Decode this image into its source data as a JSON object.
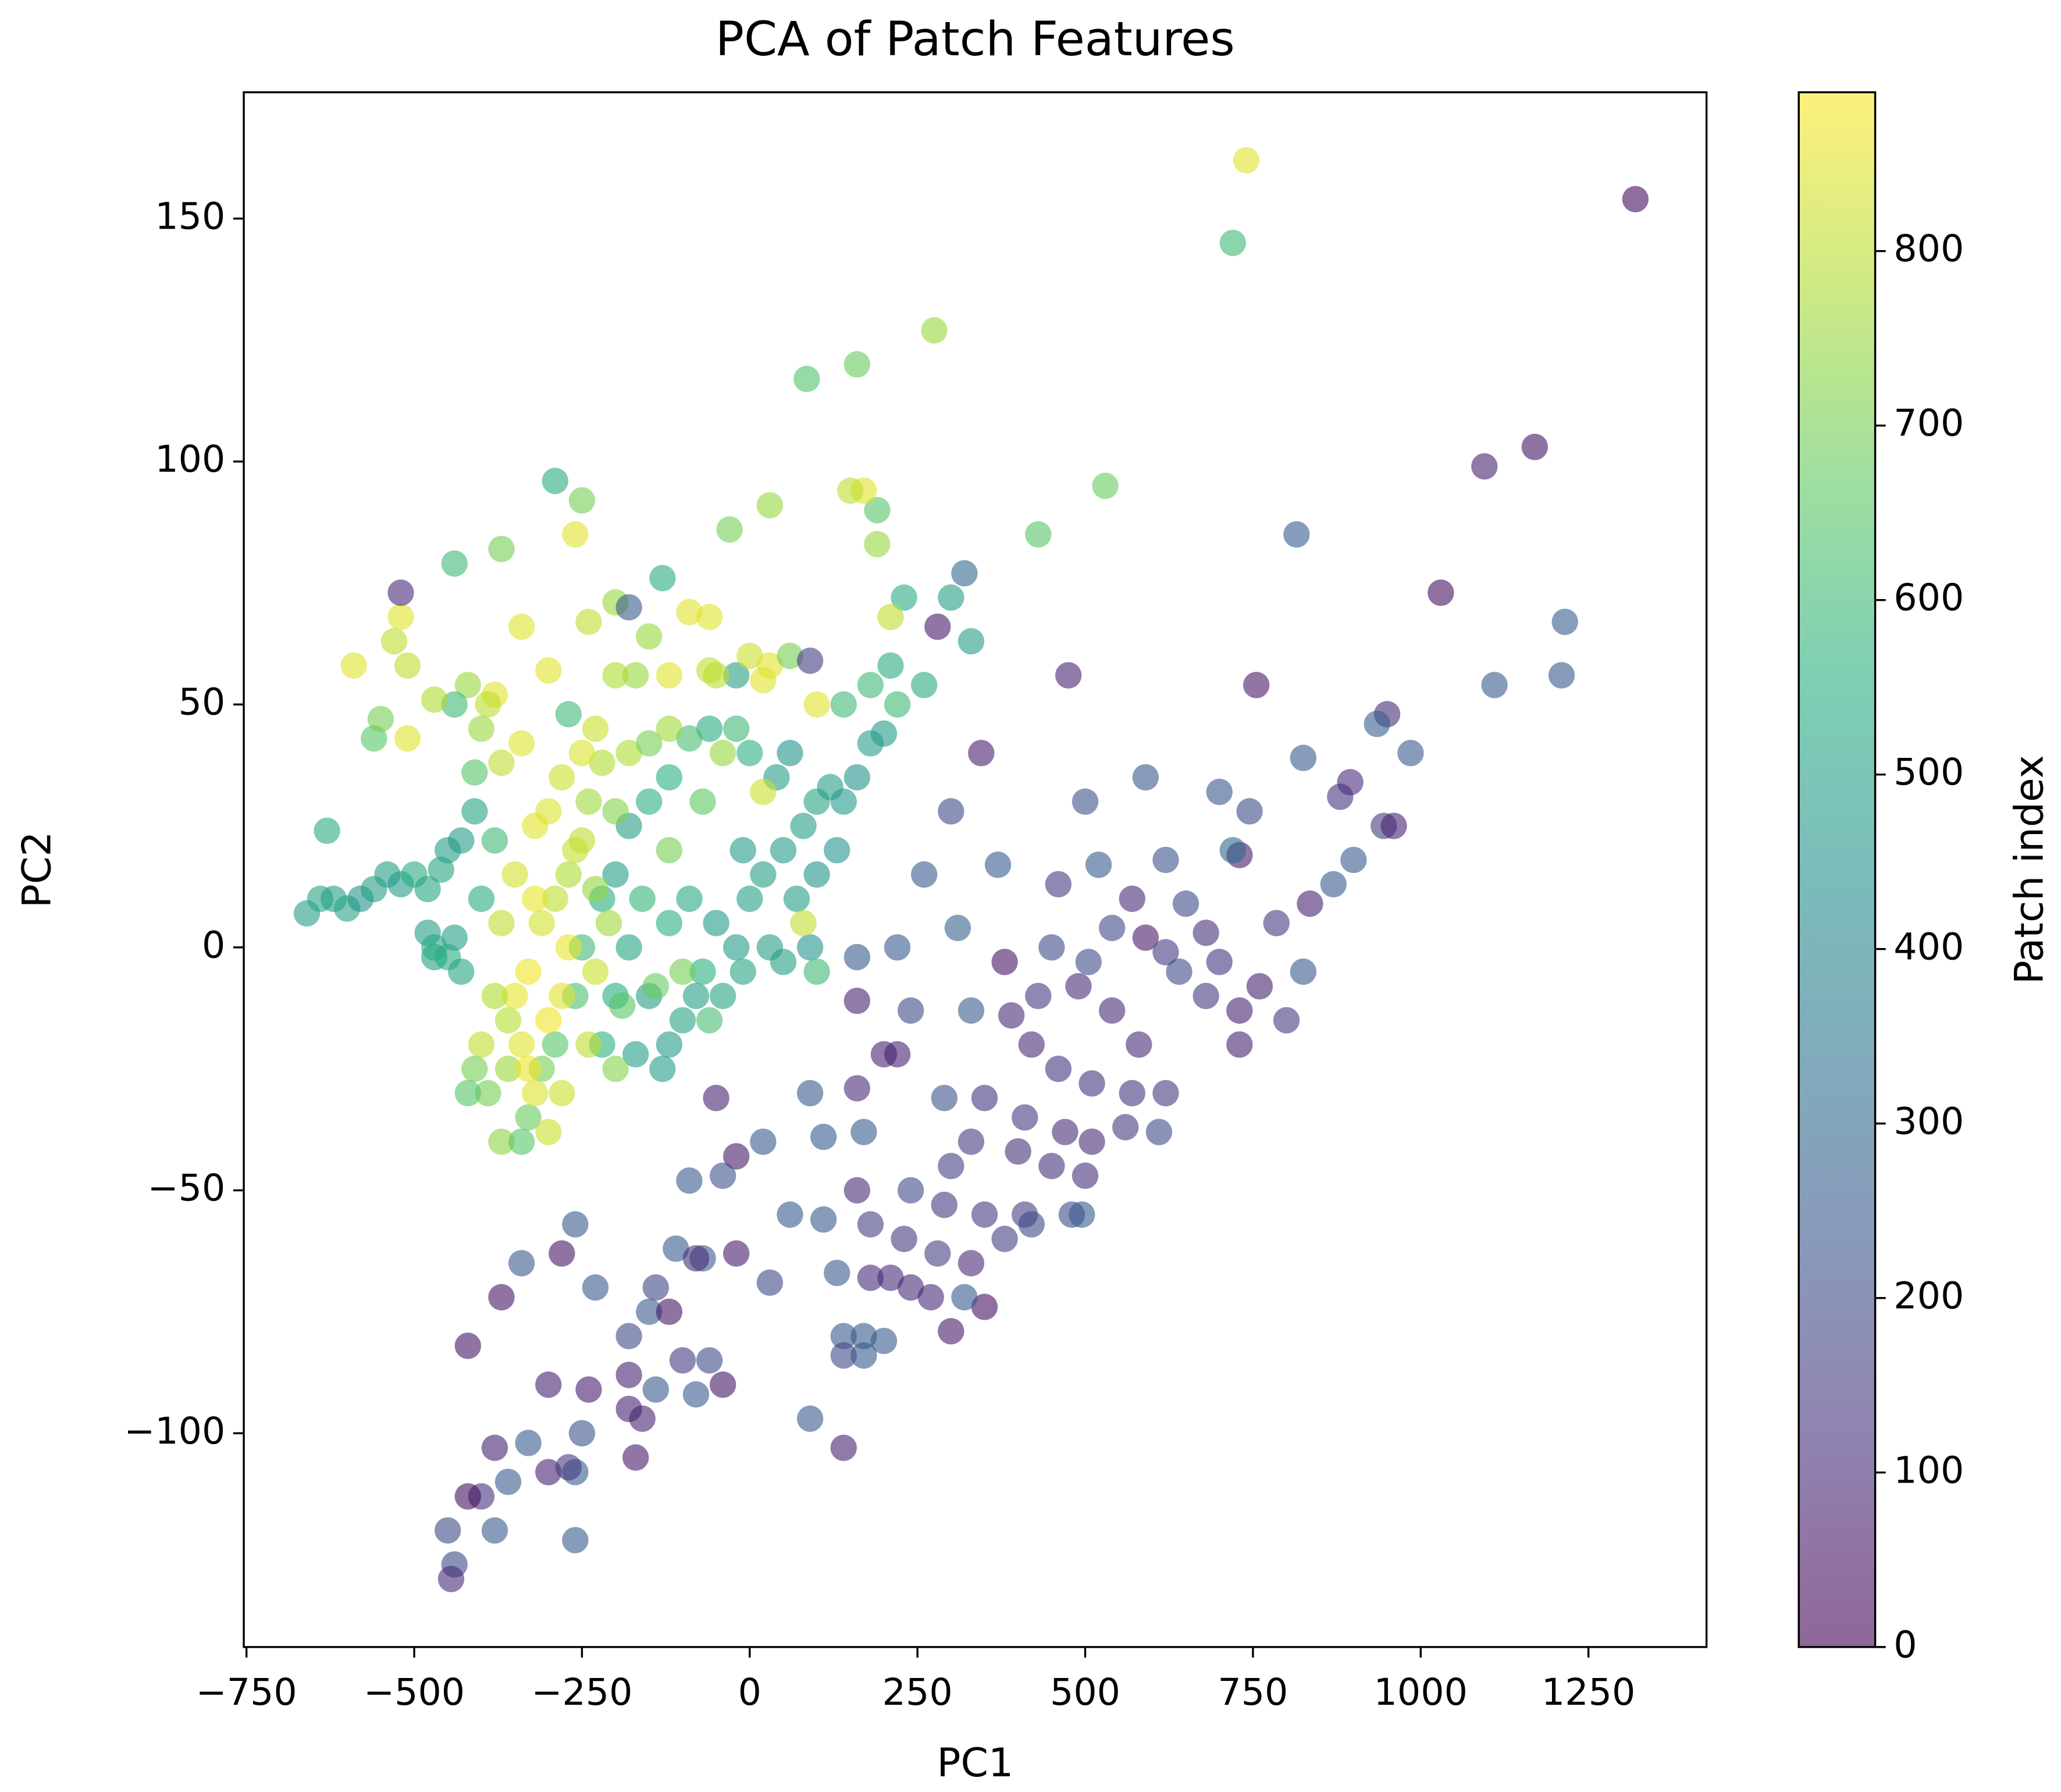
{
  "chart_data": {
    "type": "scatter",
    "title": "PCA of Patch Features",
    "xlabel": "PC1",
    "ylabel": "PC2",
    "colorbar_label": "Patch index",
    "colormap": "viridis",
    "alpha": 0.6,
    "xlim": [
      -754,
      1426
    ],
    "ylim": [
      -144,
      176
    ],
    "clim": [
      0,
      891
    ],
    "xticks": [
      {
        "value": -750,
        "label": "−750"
      },
      {
        "value": -500,
        "label": "−500"
      },
      {
        "value": -250,
        "label": "−250"
      },
      0,
      250,
      500,
      750,
      1000,
      1250
    ],
    "yticks": [
      {
        "value": -100,
        "label": "−100"
      },
      {
        "value": -50,
        "label": "−50"
      },
      0,
      50,
      100,
      150
    ],
    "cticks": [
      0,
      100,
      200,
      300,
      400,
      500,
      600,
      700,
      800
    ],
    "x": [
      740,
      1320,
      720,
      275,
      160,
      85,
      1170,
      1095,
      530,
      430,
      815,
      1030,
      1215,
      280,
      755,
      1110,
      1210,
      475,
      345,
      825,
      985,
      950,
      935,
      590,
      500,
      700,
      300,
      745,
      880,
      895,
      945,
      960,
      730,
      720,
      620,
      520,
      370,
      260,
      870,
      900,
      835,
      650,
      570,
      460,
      310,
      540,
      590,
      680,
      785,
      620,
      640,
      700,
      760,
      825,
      450,
      505,
      380,
      220,
      160,
      240,
      330,
      390,
      430,
      490,
      540,
      580,
      680,
      730,
      730,
      800,
      160,
      420,
      460,
      510,
      570,
      620,
      200,
      220,
      160,
      90,
      -50,
      290,
      350,
      410,
      470,
      510,
      560,
      610,
      110,
      170,
      330,
      400,
      450,
      500,
      300,
      20,
      -20,
      -40,
      -90,
      160,
      240,
      290,
      350,
      410,
      480,
      495,
      -110,
      -70,
      -140,
      -80,
      -20,
      60,
      110,
      180,
      230,
      280,
      330,
      380,
      420,
      -260,
      -280,
      -340,
      -370,
      -150,
      -230,
      -120,
      -180,
      -420,
      30,
      130,
      -180,
      -100,
      -60,
      -40,
      -80,
      -140,
      -240,
      -300,
      140,
      170,
      200,
      140,
      170,
      180,
      210,
      240,
      270,
      300,
      350,
      320,
      90,
      140,
      -180,
      -160,
      -250,
      -330,
      -380,
      -170,
      -360,
      -300,
      -260,
      -270,
      -400,
      -420,
      -450,
      -380,
      -260,
      -440,
      -445,
      -590,
      -530,
      -520,
      -510,
      -560,
      -550,
      -510,
      -520,
      -440,
      -370,
      -290,
      -250,
      -260,
      -340,
      -300,
      -380,
      -390,
      -420,
      -440,
      -470,
      -400,
      -410,
      -370,
      -340,
      -270,
      -240,
      -200,
      -180,
      -150,
      -130,
      -90,
      -60,
      -20,
      -50,
      -170,
      -200,
      -120,
      0,
      30,
      20,
      60,
      90,
      100,
      140,
      180,
      210,
      220,
      260,
      330,
      230,
      210,
      190,
      190,
      170,
      150,
      30,
      -30,
      -60,
      300,
      320,
      -660,
      -640,
      -620,
      -600,
      -580,
      -560,
      -540,
      -520,
      -500,
      -480,
      -460,
      -630,
      -450,
      -430,
      -410,
      -470,
      -440,
      -400,
      -380,
      -450,
      -470,
      -480,
      -430,
      -150,
      -120,
      -100,
      -70,
      -40,
      -20,
      0,
      20,
      50,
      80,
      100,
      120,
      140,
      160,
      180,
      200,
      60,
      40,
      0,
      -20,
      -60,
      -90,
      -120,
      -150,
      -180,
      -200,
      -220,
      -180,
      -200,
      -220,
      -170,
      -130,
      -80,
      -50,
      -10,
      30,
      70,
      100,
      130,
      90,
      50,
      -10,
      -90,
      -120,
      -160,
      -250,
      -260,
      -290,
      -310,
      -330,
      -300,
      -320,
      -340,
      -350,
      -330,
      -310,
      -290,
      -270,
      -250,
      -240,
      -220,
      -280,
      -300,
      -320,
      -350,
      -370,
      -360,
      -390,
      -360,
      -280,
      -270,
      -230,
      -210,
      -230,
      -200,
      -180,
      -150,
      -120,
      -230,
      -250,
      -260,
      -320,
      -300,
      -330,
      -280,
      -240,
      -200,
      -190,
      -120,
      -70,
      -40,
      20,
      80,
      100,
      -100,
      -60,
      -140,
      -380,
      -400,
      -370,
      -340,
      -410,
      -420
    ],
    "values": [
      162,
      154,
      145,
      127,
      120,
      117,
      103,
      99,
      95,
      85,
      85,
      73,
      67,
      66,
      54,
      54,
      56,
      56,
      40,
      39,
      40,
      48,
      46,
      35,
      30,
      32,
      28,
      28,
      31,
      34,
      25,
      25,
      19,
      20,
      18,
      17,
      17,
      15,
      13,
      18,
      9,
      9,
      10,
      13,
      4,
      4,
      2,
      3,
      5,
      -1,
      -5,
      -3,
      -8,
      -5,
      0,
      -3,
      -3,
      0,
      -2,
      -13,
      -13,
      -14,
      -10,
      -8,
      -13,
      -20,
      -10,
      -20,
      -13,
      -15,
      -11,
      -20,
      -25,
      -28,
      -30,
      -30,
      -22,
      -22,
      -29,
      -30,
      -31,
      -31,
      -31,
      -35,
      -38,
      -40,
      -37,
      -38,
      -39,
      -38,
      -40,
      -42,
      -45,
      -47,
      -45,
      -40,
      -43,
      -47,
      -48,
      -50,
      -50,
      -53,
      -55,
      -55,
      -55,
      -55,
      -62,
      -64,
      -70,
      -64,
      -63,
      -55,
      -56,
      -57,
      -60,
      -63,
      -65,
      -60,
      -57,
      -57,
      -63,
      -65,
      -72,
      -75,
      -70,
      -75,
      -80,
      -82,
      -69,
      -67,
      -88,
      -85,
      -85,
      -90,
      -92,
      -91,
      -91,
      -90,
      -80,
      -80,
      -81,
      -84,
      -84,
      -68,
      -68,
      -70,
      -72,
      -79,
      -74,
      -72,
      -97,
      -103,
      -95,
      -97,
      -100,
      -102,
      -103,
      -105,
      -110,
      -108,
      -108,
      -107,
      -113,
      -113,
      -120,
      -120,
      -122,
      -127,
      -130,
      58,
      63,
      68,
      58,
      43,
      47,
      43,
      73,
      79,
      82,
      96,
      92,
      85,
      66,
      57,
      52,
      50,
      54,
      50,
      51,
      45,
      36,
      38,
      42,
      48,
      67,
      71,
      70,
      64,
      76,
      69,
      57,
      56,
      56,
      56,
      56,
      56,
      60,
      58,
      55,
      60,
      59,
      50,
      50,
      54,
      58,
      50,
      54,
      63,
      72,
      68,
      83,
      90,
      94,
      94,
      91,
      86,
      68,
      72,
      77,
      7,
      10,
      10,
      8,
      10,
      12,
      15,
      13,
      15,
      12,
      16,
      24,
      20,
      22,
      28,
      -2,
      2,
      10,
      22,
      -2,
      0,
      3,
      -5,
      -10,
      -20,
      -15,
      -5,
      -10,
      0,
      10,
      15,
      20,
      25,
      30,
      33,
      30,
      35,
      42,
      44,
      40,
      35,
      40,
      45,
      45,
      43,
      35,
      30,
      25,
      15,
      10,
      0,
      -10,
      -20,
      -22,
      -25,
      -10,
      5,
      20,
      0,
      10,
      15,
      20,
      0,
      -3,
      -5,
      10,
      5,
      10,
      0,
      -10,
      -20,
      -25,
      -35,
      -38,
      -30,
      -20,
      -10,
      -5,
      5,
      10,
      15,
      22,
      30,
      38,
      35,
      28,
      25,
      15,
      5,
      -15,
      -30,
      -25,
      -10,
      0,
      -5,
      5,
      12,
      28,
      40,
      42,
      45,
      45,
      40,
      20,
      10,
      -15,
      -25,
      -30,
      -20,
      -25,
      -12,
      20,
      30,
      40,
      32,
      5,
      -5,
      -5,
      -15,
      -8,
      -10,
      -20,
      -40,
      -40,
      -25,
      -30
    ],
    "color_values": [
      850,
      30,
      600,
      750,
      680,
      640,
      50,
      80,
      680,
      650,
      250,
      40,
      260,
      60,
      60,
      250,
      240,
      80,
      70,
      250,
      250,
      100,
      260,
      240,
      220,
      240,
      200,
      200,
      130,
      110,
      150,
      80,
      60,
      300,
      230,
      250,
      250,
      250,
      250,
      250,
      80,
      200,
      100,
      150,
      270,
      200,
      60,
      120,
      150,
      150,
      200,
      130,
      80,
      250,
      200,
      200,
      50,
      250,
      250,
      200,
      250,
      100,
      150,
      100,
      100,
      100,
      150,
      80,
      80,
      150,
      80,
      100,
      130,
      130,
      130,
      150,
      80,
      80,
      100,
      250,
      80,
      220,
      130,
      150,
      100,
      100,
      150,
      200,
      250,
      250,
      150,
      120,
      120,
      120,
      160,
      250,
      60,
      220,
      250,
      100,
      200,
      150,
      150,
      160,
      200,
      250,
      250,
      250,
      180,
      100,
      60,
      250,
      250,
      160,
      150,
      160,
      100,
      160,
      200,
      250,
      50,
      250,
      50,
      250,
      250,
      50,
      200,
      50,
      200,
      250,
      80,
      150,
      200,
      50,
      250,
      250,
      70,
      80,
      250,
      250,
      250,
      200,
      250,
      100,
      100,
      100,
      100,
      60,
      40,
      250,
      250,
      80,
      80,
      80,
      220,
      250,
      80,
      60,
      250,
      80,
      250,
      150,
      120,
      40,
      200,
      250,
      250,
      200,
      100,
      850,
      800,
      850,
      800,
      650,
      700,
      850,
      100,
      600,
      700,
      550,
      700,
      850,
      850,
      850,
      850,
      800,
      750,
      600,
      780,
      750,
      650,
      800,
      850,
      600,
      800,
      750,
      250,
      750,
      550,
      850,
      800,
      500,
      800,
      750,
      780,
      850,
      820,
      850,
      850,
      700,
      150,
      850,
      600,
      600,
      550,
      600,
      550,
      500,
      550,
      800,
      750,
      650,
      850,
      800,
      750,
      700,
      850,
      500,
      300,
      500,
      520,
      500,
      520,
      450,
      500,
      500,
      480,
      550,
      520,
      520,
      550,
      500,
      480,
      520,
      500,
      500,
      550,
      600,
      550,
      550,
      500,
      520,
      500,
      480,
      520,
      560,
      520,
      480,
      500,
      500,
      480,
      500,
      520,
      500,
      480,
      450,
      500,
      480,
      450,
      500,
      560,
      600,
      540,
      620,
      560,
      560,
      500,
      500,
      550,
      520,
      540,
      560,
      500,
      480,
      500,
      480,
      480,
      500,
      500,
      450,
      460,
      460,
      500,
      520,
      530,
      560,
      580,
      600,
      630,
      650,
      700,
      680,
      820,
      840,
      850,
      860,
      870,
      830,
      800,
      780,
      800,
      760,
      780,
      820,
      840,
      850,
      830,
      800,
      790,
      700,
      750,
      850,
      860,
      820,
      760,
      740,
      720,
      780,
      700,
      760,
      820,
      840,
      810,
      860,
      870,
      870,
      820,
      800,
      720,
      650,
      700,
      660,
      750,
      820,
      800,
      600,
      700,
      620,
      680,
      780,
      800,
      730,
      650,
      700,
      650
    ]
  }
}
